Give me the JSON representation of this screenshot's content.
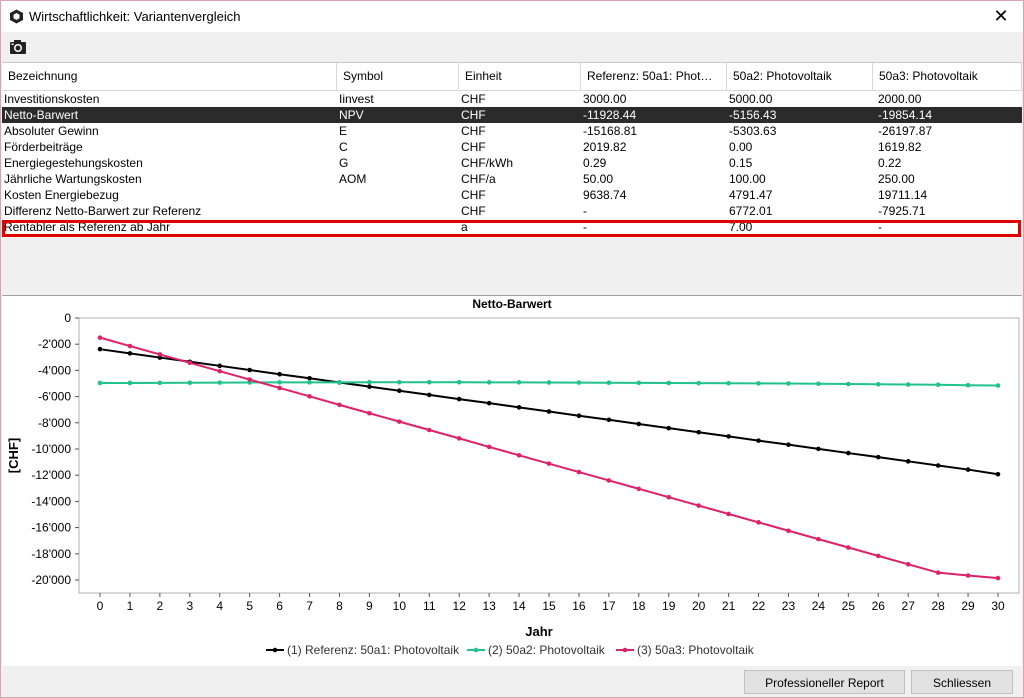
{
  "window": {
    "title": "Wirtschaftlichkeit: Variantenvergleich",
    "close_glyph": "✕"
  },
  "toolbar": {
    "camera_icon": "camera-icon"
  },
  "table": {
    "headers": [
      "Bezeichnung",
      "Symbol",
      "Einheit",
      "Referenz: 50a1: Phot…",
      "50a2: Photovoltaik",
      "50a3: Photovoltaik"
    ],
    "rows": [
      [
        "Investitionskosten",
        "Iinvest",
        "CHF",
        "3000.00",
        "5000.00",
        "2000.00"
      ],
      [
        "Netto-Barwert",
        "NPV",
        "CHF",
        "-11928.44",
        "-5156.43",
        "-19854.14"
      ],
      [
        "Absoluter Gewinn",
        "E",
        "CHF",
        "-15168.81",
        "-5303.63",
        "-26197.87"
      ],
      [
        "Förderbeiträge",
        "C",
        "CHF",
        "2019.82",
        "0.00",
        "1619.82"
      ],
      [
        "Energiegestehungskosten",
        "G",
        "CHF/kWh",
        "0.29",
        "0.15",
        "0.22"
      ],
      [
        "Jährliche Wartungskosten",
        "AOM",
        "CHF/a",
        "50.00",
        "100.00",
        "250.00"
      ],
      [
        "Kosten Energiebezug",
        "",
        "CHF",
        "9638.74",
        "4791.47",
        "19711.14"
      ],
      [
        "Differenz Netto-Barwert zur Referenz",
        "",
        "CHF",
        "-",
        "6772.01",
        "-7925.71"
      ],
      [
        "Rentabler als Referenz ab Jahr",
        "",
        "a",
        "-",
        "7.00",
        "-"
      ]
    ],
    "selected_row": 1,
    "highlighted_row": 8
  },
  "chart_data": {
    "type": "line",
    "title": "Netto-Barwert",
    "xlabel": "Jahr",
    "ylabel": "[CHF]",
    "x": [
      0,
      1,
      2,
      3,
      4,
      5,
      6,
      7,
      8,
      9,
      10,
      11,
      12,
      13,
      14,
      15,
      16,
      17,
      18,
      19,
      20,
      21,
      22,
      23,
      24,
      25,
      26,
      27,
      28,
      29,
      30
    ],
    "xlim": [
      0,
      30
    ],
    "ylim": [
      -20000,
      0
    ],
    "yticks": [
      0,
      -2000,
      -4000,
      -6000,
      -8000,
      -10000,
      -12000,
      -14000,
      -16000,
      -18000,
      -20000
    ],
    "ytick_labels": [
      "0",
      "-2'000",
      "-4'000",
      "-6'000",
      "-8'000",
      "-10'000",
      "-12'000",
      "-14'000",
      "-16'000",
      "-18'000",
      "-20'000"
    ],
    "grid": false,
    "legend_position": "bottom",
    "series": [
      {
        "name": "(1) Referenz: 50a1: Photovoltaik",
        "color": "#000000",
        "values": [
          -2380,
          -2700,
          -3020,
          -3340,
          -3650,
          -3970,
          -4290,
          -4600,
          -4920,
          -5240,
          -5550,
          -5870,
          -6190,
          -6500,
          -6820,
          -7140,
          -7460,
          -7770,
          -8090,
          -8410,
          -8720,
          -9040,
          -9360,
          -9670,
          -9990,
          -10310,
          -10620,
          -10940,
          -11260,
          -11570,
          -11928
        ]
      },
      {
        "name": "(2) 50a2: Photovoltaik",
        "color": "#1fc28a",
        "values": [
          -4960,
          -4960,
          -4950,
          -4940,
          -4930,
          -4920,
          -4910,
          -4910,
          -4910,
          -4900,
          -4900,
          -4900,
          -4900,
          -4910,
          -4910,
          -4920,
          -4930,
          -4940,
          -4950,
          -4960,
          -4970,
          -4980,
          -4990,
          -5000,
          -5020,
          -5040,
          -5060,
          -5080,
          -5100,
          -5130,
          -5156
        ]
      },
      {
        "name": "(3) 50a3: Photovoltaik",
        "color": "#e0206a",
        "values": [
          -1500,
          -2140,
          -2780,
          -3420,
          -4060,
          -4700,
          -5340,
          -5980,
          -6630,
          -7270,
          -7910,
          -8550,
          -9190,
          -9840,
          -10480,
          -11120,
          -11760,
          -12400,
          -13040,
          -13680,
          -14320,
          -14960,
          -15600,
          -16240,
          -16880,
          -17520,
          -18160,
          -18800,
          -19440,
          -19660,
          -19854
        ]
      }
    ]
  },
  "buttons": {
    "report": "Professioneller Report",
    "close": "Schliessen"
  }
}
